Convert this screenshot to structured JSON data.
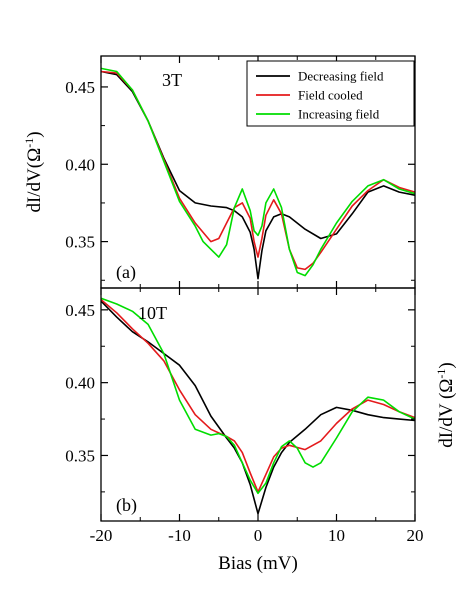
{
  "chart_data": [
    {
      "type": "line",
      "panel_label": "(a)",
      "field_label": "3T",
      "xlim": [
        -20,
        20
      ],
      "ylim": [
        0.32,
        0.47
      ],
      "yticks": [
        "0.45",
        "0.40",
        "0.35"
      ],
      "ylabel_main": "dI/dV(",
      "ylabel_unit": "Ω",
      "ylabel_sup": "-1",
      "ylabel_close": ")",
      "legend": {
        "position": "top-right"
      },
      "series": [
        {
          "name": "Decreasing field",
          "color": "#000000",
          "x": [
            -20,
            -18,
            -16,
            -14,
            -12,
            -10,
            -8,
            -6,
            -4,
            -3,
            -2,
            -1,
            -0.5,
            0,
            0.5,
            1,
            2,
            3,
            4,
            6,
            8,
            10,
            12,
            14,
            16,
            18,
            20
          ],
          "y": [
            0.46,
            0.458,
            0.447,
            0.428,
            0.404,
            0.383,
            0.375,
            0.373,
            0.372,
            0.37,
            0.366,
            0.356,
            0.345,
            0.326,
            0.344,
            0.357,
            0.366,
            0.368,
            0.366,
            0.358,
            0.352,
            0.355,
            0.368,
            0.382,
            0.386,
            0.382,
            0.38
          ]
        },
        {
          "name": "Field cooled",
          "color": "#e41a1c",
          "x": [
            -20,
            -18,
            -16,
            -14,
            -12,
            -10,
            -8,
            -6,
            -5,
            -4,
            -3,
            -2,
            -1,
            -0.5,
            0,
            0.5,
            1,
            2,
            3,
            4,
            5,
            6,
            7,
            8,
            10,
            12,
            14,
            16,
            18,
            20
          ],
          "y": [
            0.46,
            0.459,
            0.448,
            0.428,
            0.403,
            0.378,
            0.362,
            0.35,
            0.352,
            0.362,
            0.372,
            0.375,
            0.365,
            0.35,
            0.34,
            0.352,
            0.367,
            0.377,
            0.368,
            0.345,
            0.333,
            0.332,
            0.336,
            0.343,
            0.358,
            0.373,
            0.383,
            0.39,
            0.385,
            0.382
          ]
        },
        {
          "name": "Increasing field",
          "color": "#00dd00",
          "x": [
            -20,
            -18,
            -16,
            -14,
            -12,
            -10,
            -8,
            -7,
            -6,
            -5,
            -4,
            -3,
            -2,
            -1,
            -0.5,
            0,
            0.5,
            1,
            2,
            3,
            4,
            5,
            6,
            7,
            8,
            10,
            12,
            14,
            16,
            18,
            20
          ],
          "y": [
            0.462,
            0.46,
            0.448,
            0.428,
            0.402,
            0.376,
            0.36,
            0.35,
            0.345,
            0.34,
            0.348,
            0.372,
            0.384,
            0.37,
            0.357,
            0.354,
            0.36,
            0.375,
            0.384,
            0.372,
            0.345,
            0.33,
            0.328,
            0.335,
            0.345,
            0.362,
            0.376,
            0.386,
            0.39,
            0.384,
            0.381
          ]
        }
      ]
    },
    {
      "type": "line",
      "panel_label": "(b)",
      "field_label": "10T",
      "xlim": [
        -20,
        20
      ],
      "ylim": [
        0.305,
        0.465
      ],
      "yticks": [
        "0.45",
        "0.40",
        "0.35"
      ],
      "xticks": [
        "-20",
        "-10",
        "0",
        "10",
        "20"
      ],
      "xlabel": "Bias (mV)",
      "ylabel_main": "dI/dV (",
      "ylabel_unit": "Ω",
      "ylabel_sup": "-1",
      "ylabel_close": ")",
      "series": [
        {
          "name": "Decreasing field",
          "color": "#000000",
          "x": [
            -20,
            -18,
            -16,
            -14,
            -12,
            -10,
            -8,
            -6,
            -4,
            -3,
            -2,
            -1,
            0,
            1,
            2,
            3,
            4,
            6,
            8,
            10,
            12,
            14,
            16,
            18,
            20
          ],
          "y": [
            0.456,
            0.445,
            0.435,
            0.428,
            0.42,
            0.412,
            0.398,
            0.377,
            0.362,
            0.355,
            0.345,
            0.33,
            0.31,
            0.328,
            0.342,
            0.352,
            0.359,
            0.368,
            0.378,
            0.383,
            0.381,
            0.378,
            0.376,
            0.375,
            0.374
          ]
        },
        {
          "name": "Field cooled",
          "color": "#e41a1c",
          "x": [
            -20,
            -18,
            -16,
            -14,
            -12,
            -10,
            -8,
            -6,
            -4,
            -3,
            -2,
            -1,
            0,
            1,
            2,
            3,
            4,
            6,
            8,
            10,
            12,
            14,
            16,
            18,
            20
          ],
          "y": [
            0.457,
            0.448,
            0.437,
            0.427,
            0.415,
            0.395,
            0.378,
            0.368,
            0.363,
            0.36,
            0.352,
            0.338,
            0.325,
            0.337,
            0.349,
            0.355,
            0.357,
            0.354,
            0.36,
            0.372,
            0.382,
            0.388,
            0.385,
            0.38,
            0.376
          ]
        },
        {
          "name": "Increasing field",
          "color": "#00dd00",
          "x": [
            -20,
            -18,
            -16,
            -14,
            -12,
            -10,
            -8,
            -6,
            -5,
            -4,
            -3,
            -2,
            -1,
            0,
            1,
            2,
            3,
            4,
            5,
            6,
            7,
            8,
            10,
            12,
            14,
            16,
            18,
            20
          ],
          "y": [
            0.458,
            0.454,
            0.449,
            0.44,
            0.42,
            0.388,
            0.368,
            0.364,
            0.365,
            0.363,
            0.357,
            0.345,
            0.333,
            0.324,
            0.331,
            0.345,
            0.356,
            0.36,
            0.355,
            0.345,
            0.342,
            0.345,
            0.362,
            0.38,
            0.39,
            0.388,
            0.38,
            0.375
          ]
        }
      ]
    }
  ]
}
